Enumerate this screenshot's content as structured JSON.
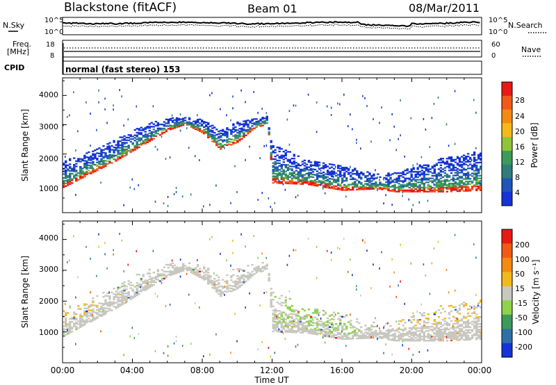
{
  "header": {
    "station": "Blackstone (fitACF)",
    "beam": "Beam 01",
    "date": "08/Mar/2011"
  },
  "noise_panel": {
    "left_label": "N.Sky",
    "right_label": "N.Search",
    "left_ticks": [
      "10^5",
      "10^0"
    ],
    "right_ticks": [
      "10^5",
      "10^0"
    ]
  },
  "freq_panel": {
    "left_label_line1": "Freq.",
    "left_label_line2": "[MHz]",
    "right_label": "Nave",
    "left_ticks": [
      "18",
      "8"
    ],
    "right_ticks": [
      "60",
      "0"
    ]
  },
  "cpid": {
    "label": "CPID",
    "text": "normal (fast stereo) 153"
  },
  "x_axis": {
    "title": "Time UT",
    "ticks": [
      "00:00",
      "04:00",
      "08:00",
      "12:00",
      "16:00",
      "20:00",
      "00:00"
    ]
  },
  "colors": {
    "power": [
      "#1533d6",
      "#1f54b8",
      "#2f7d7a",
      "#3c9a5a",
      "#8fc43c",
      "#f3b81b",
      "#f58a12",
      "#f1591a",
      "#e81a14"
    ],
    "velocity": [
      "#e81a14",
      "#f15a14",
      "#f58a12",
      "#f3b81b",
      "#c8c8c0",
      "#8fd24b",
      "#3c9a5a",
      "#2f6fa8",
      "#1533d6"
    ]
  },
  "chart_data": [
    {
      "type": "heatmap",
      "name": "power",
      "ylabel": "Slant Range [km]",
      "yticks": [
        "4000",
        "3000",
        "2000",
        "1000"
      ],
      "ylim": [
        0,
        4600
      ],
      "xlim": [
        0,
        24
      ],
      "colorbar_label": "Power [dB]",
      "colorbar_ticks": [
        "28",
        "24",
        "20",
        "16",
        "12",
        "8",
        "4"
      ],
      "colorbar_range": [
        0,
        32
      ],
      "inner_edge_km": [
        [
          0,
          850
        ],
        [
          1,
          1150
        ],
        [
          2,
          1450
        ],
        [
          3,
          1750
        ],
        [
          4,
          2100
        ],
        [
          5,
          2450
        ],
        [
          6,
          2800
        ],
        [
          7,
          3000
        ],
        [
          8,
          2700
        ],
        [
          9,
          2150
        ],
        [
          10,
          2400
        ],
        [
          11,
          2900
        ],
        [
          11.7,
          3000
        ],
        [
          12,
          1000
        ],
        [
          14,
          950
        ],
        [
          16,
          750
        ],
        [
          18,
          800
        ],
        [
          19,
          700
        ],
        [
          22,
          700
        ],
        [
          24,
          750
        ]
      ],
      "outer_edge_km": [
        [
          0,
          1750
        ],
        [
          1,
          1950
        ],
        [
          2,
          2200
        ],
        [
          3,
          2500
        ],
        [
          4,
          2800
        ],
        [
          5,
          3050
        ],
        [
          6,
          3200
        ],
        [
          7,
          3250
        ],
        [
          8,
          3150
        ],
        [
          9,
          2800
        ],
        [
          10,
          3100
        ],
        [
          11,
          3200
        ],
        [
          11.7,
          3300
        ],
        [
          12,
          2300
        ],
        [
          14,
          1800
        ],
        [
          16,
          1600
        ],
        [
          18,
          1300
        ],
        [
          19,
          1350
        ],
        [
          22,
          1900
        ],
        [
          24,
          2100
        ]
      ]
    },
    {
      "type": "heatmap",
      "name": "velocity",
      "ylabel": "Slant Range [km]",
      "yticks": [
        "4000",
        "3000",
        "2000",
        "1000"
      ],
      "ylim": [
        0,
        4600
      ],
      "xlim": [
        0,
        24
      ],
      "colorbar_label": "Velocity [m s⁻¹]",
      "colorbar_ticks": [
        "200",
        "100",
        "50",
        "15",
        "-15",
        "-50",
        "-100",
        "-200"
      ],
      "colorbar_range": [
        -250,
        250
      ]
    }
  ]
}
